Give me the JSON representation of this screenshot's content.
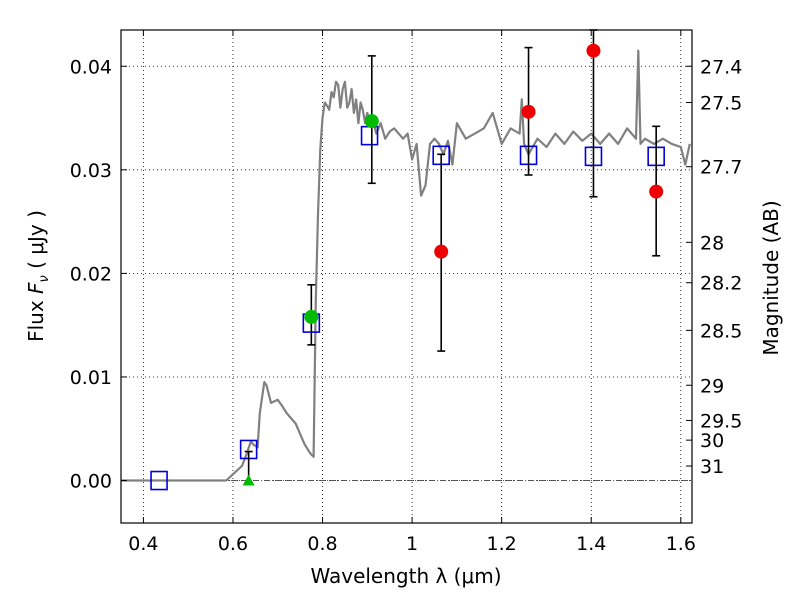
{
  "chart_data": {
    "type": "scatter",
    "xlabel": "Wavelength  λ (μm)",
    "ylabel_text": "Flux",
    "ylabel_symbol": "F",
    "ylabel_subscript": "ν",
    "ylabel_unit": "( μJy )",
    "y2label": "Magnitude (AB)",
    "xlim": [
      0.35,
      1.625
    ],
    "ylim": [
      -0.0041,
      0.0435
    ],
    "grid": true,
    "xticks": [
      0.4,
      0.6,
      0.8,
      1.0,
      1.2,
      1.4,
      1.6
    ],
    "xtick_labels": [
      "0.4",
      "0.6",
      "0.8",
      "1",
      "1.2",
      "1.4",
      "1.6"
    ],
    "yticks": [
      0.0,
      0.01,
      0.02,
      0.03,
      0.04
    ],
    "ytick_labels": [
      "0.00",
      "0.01",
      "0.02",
      "0.03",
      "0.04"
    ],
    "right_ticks": [
      {
        "label": "27.4",
        "flux": 0.04
      },
      {
        "label": "27.5",
        "flux": 0.0365
      },
      {
        "label": "27.7",
        "flux": 0.0303
      },
      {
        "label": "28",
        "flux": 0.023
      },
      {
        "label": "28.2",
        "flux": 0.0191
      },
      {
        "label": "28.5",
        "flux": 0.0145
      },
      {
        "label": "29",
        "flux": 0.0092
      },
      {
        "label": "29.5",
        "flux": 0.0058
      },
      {
        "label": "30",
        "flux": 0.0039
      },
      {
        "label": "31",
        "flux": 0.0014
      }
    ],
    "model_spectrum": {
      "color": "#808080",
      "x": [
        0.35,
        0.585,
        0.62,
        0.63,
        0.64,
        0.645,
        0.655,
        0.66,
        0.67,
        0.675,
        0.685,
        0.7,
        0.71,
        0.72,
        0.73,
        0.74,
        0.75,
        0.76,
        0.77,
        0.775,
        0.78,
        0.785,
        0.79,
        0.795,
        0.8,
        0.805,
        0.81,
        0.815,
        0.82,
        0.825,
        0.83,
        0.835,
        0.84,
        0.845,
        0.85,
        0.855,
        0.86,
        0.865,
        0.87,
        0.875,
        0.88,
        0.885,
        0.89,
        0.895,
        0.9,
        0.905,
        0.91,
        0.92,
        0.93,
        0.94,
        0.95,
        0.96,
        0.97,
        0.98,
        0.99,
        1.0,
        1.01,
        1.02,
        1.03,
        1.04,
        1.05,
        1.06,
        1.07,
        1.08,
        1.09,
        1.1,
        1.12,
        1.14,
        1.16,
        1.18,
        1.2,
        1.22,
        1.24,
        1.245,
        1.25,
        1.26,
        1.28,
        1.3,
        1.32,
        1.34,
        1.36,
        1.38,
        1.4,
        1.42,
        1.44,
        1.46,
        1.48,
        1.5,
        1.505,
        1.51,
        1.52,
        1.54,
        1.56,
        1.58,
        1.6,
        1.61,
        1.62
      ],
      "y": [
        0.0,
        0.0,
        0.0014,
        0.0025,
        0.0038,
        0.0035,
        0.0032,
        0.0065,
        0.0095,
        0.0092,
        0.0075,
        0.0078,
        0.0072,
        0.0065,
        0.006,
        0.0055,
        0.0045,
        0.0035,
        0.0028,
        0.0025,
        0.0023,
        0.0175,
        0.026,
        0.032,
        0.035,
        0.0365,
        0.0362,
        0.0358,
        0.0375,
        0.037,
        0.0385,
        0.0382,
        0.036,
        0.0378,
        0.0385,
        0.036,
        0.0365,
        0.0378,
        0.0355,
        0.0368,
        0.0345,
        0.0365,
        0.0358,
        0.0345,
        0.0355,
        0.0348,
        0.0352,
        0.0335,
        0.0345,
        0.033,
        0.0337,
        0.034,
        0.0335,
        0.033,
        0.0335,
        0.031,
        0.0325,
        0.0275,
        0.0285,
        0.0325,
        0.033,
        0.0325,
        0.0315,
        0.0328,
        0.0305,
        0.0345,
        0.033,
        0.0335,
        0.034,
        0.0355,
        0.0325,
        0.034,
        0.0335,
        0.0368,
        0.0325,
        0.0315,
        0.033,
        0.0322,
        0.0335,
        0.0325,
        0.0337,
        0.0328,
        0.0335,
        0.0325,
        0.0335,
        0.0325,
        0.034,
        0.033,
        0.0415,
        0.0325,
        0.033,
        0.0325,
        0.033,
        0.0325,
        0.0322,
        0.0305,
        0.0325
      ]
    },
    "model_photometry": {
      "color": "#0000dd",
      "marker": "open-square",
      "x": [
        0.435,
        0.635,
        0.775,
        0.905,
        1.065,
        1.26,
        1.405,
        1.545
      ],
      "y": [
        0.0,
        0.003,
        0.0152,
        0.0333,
        0.0314,
        0.0314,
        0.0313,
        0.0313
      ]
    },
    "detections_green": {
      "color": "#00bb00",
      "marker": "filled-circle",
      "points": [
        {
          "x": 0.775,
          "y": 0.0158,
          "err_low": 0.0131,
          "err_high": 0.0189
        },
        {
          "x": 0.91,
          "y": 0.0347,
          "err_low": 0.0287,
          "err_high": 0.041
        }
      ]
    },
    "upper_limit_green": {
      "color": "#00bb00",
      "marker": "filled-triangle",
      "points": [
        {
          "x": 0.635,
          "y": 0.0,
          "err_low": -0.0003,
          "err_high": 0.0028
        }
      ]
    },
    "detections_red": {
      "color": "#ee0000",
      "marker": "filled-circle",
      "points": [
        {
          "x": 1.065,
          "y": 0.0221,
          "err_low": 0.0125,
          "err_high": 0.0315
        },
        {
          "x": 1.26,
          "y": 0.0356,
          "err_low": 0.0295,
          "err_high": 0.0418
        },
        {
          "x": 1.405,
          "y": 0.0415,
          "err_low": 0.0274,
          "err_high": 0.0435
        },
        {
          "x": 1.545,
          "y": 0.0279,
          "err_low": 0.0217,
          "err_high": 0.0342
        }
      ]
    },
    "zero_line": {
      "y": 0.0,
      "color": "#555555"
    }
  }
}
